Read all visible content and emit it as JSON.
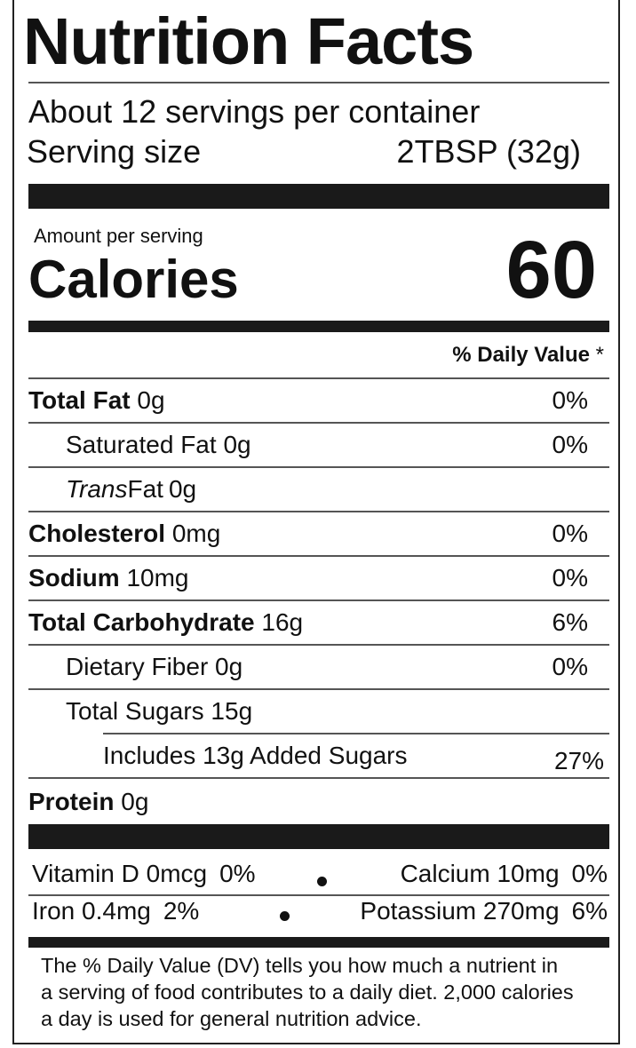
{
  "title": "Nutrition Facts",
  "servings": "About 12 servings per container",
  "serving_size": {
    "label": "Serving size",
    "value": "2TBSP (32g)"
  },
  "amount_per_serving": "Amount per serving",
  "calories": {
    "label": "Calories",
    "value": "60"
  },
  "dv_header": {
    "label": "% Daily Value",
    "mark": "*"
  },
  "rows": [
    {
      "name": "Total Fat",
      "amount": "0g",
      "dv": "0%"
    },
    {
      "name": "Saturated Fat",
      "amount": "0g",
      "dv": "0%"
    },
    {
      "name_italic": "Trans",
      "name": "Fat",
      "amount": "0g"
    },
    {
      "name": "Cholesterol",
      "amount": "0mg",
      "dv": "0%"
    },
    {
      "name": "Sodium",
      "amount": "10mg",
      "dv": "0%"
    },
    {
      "name": "Total Carbohydrate",
      "amount": "16g",
      "dv": "6%"
    },
    {
      "name": "Dietary Fiber",
      "amount": "0g",
      "dv": "0%"
    },
    {
      "name": "Total Sugars",
      "amount": "15g"
    },
    {
      "name": "Includes 13g Added Sugars",
      "dv": "27%"
    },
    {
      "name": "Protein",
      "amount": "0g"
    }
  ],
  "micros": [
    {
      "name": "Vitamin D",
      "amount": "0mcg",
      "dv": "0%"
    },
    {
      "name": "Calcium",
      "amount": "10mg",
      "dv": "0%"
    },
    {
      "name": "Iron",
      "amount": "0.4mg",
      "dv": "2%"
    },
    {
      "name": "Potassium",
      "amount": "270mg",
      "dv": "6%"
    }
  ],
  "footnote": [
    "The % Daily Value (DV) tells you how much a nutrient in",
    "a serving of food contributes to a daily diet. 2,000 calories",
    "a day is used for general nutrition advice."
  ]
}
